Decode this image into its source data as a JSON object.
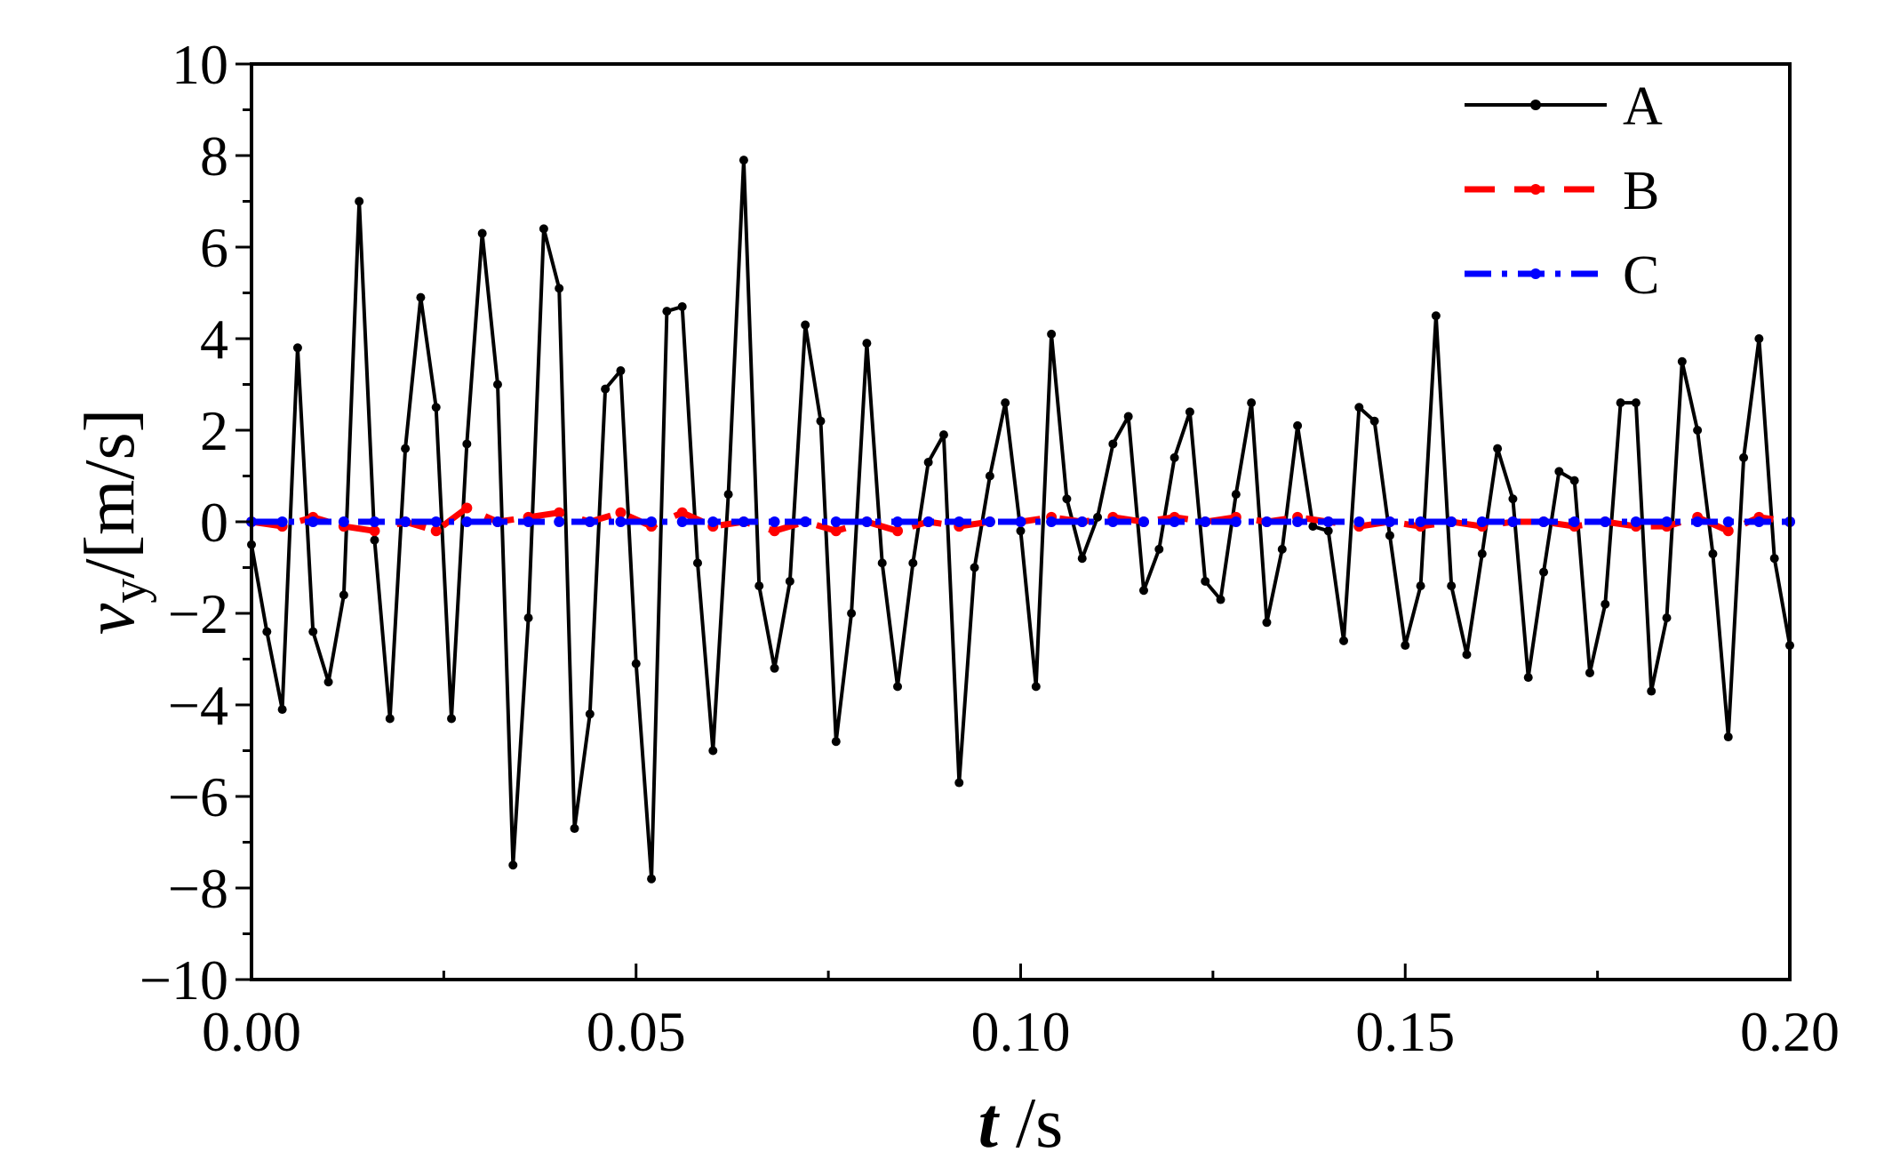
{
  "chart_data": {
    "type": "line",
    "xlabel": {
      "var": "t",
      "unit": " /s"
    },
    "ylabel": {
      "var": "v",
      "sub": "y",
      "unit": "/[m/s]"
    },
    "xlim": [
      0.0,
      0.2
    ],
    "ylim": [
      -10,
      10
    ],
    "x_ticks": [
      0.0,
      0.05,
      0.1,
      0.15,
      0.2
    ],
    "x_tick_labels": [
      "0.00",
      "0.05",
      "0.10",
      "0.15",
      "0.20"
    ],
    "y_ticks": [
      -10,
      -8,
      -6,
      -4,
      -2,
      0,
      2,
      4,
      6,
      8,
      10
    ],
    "y_tick_labels": [
      "−10",
      "−8",
      "−6",
      "−4",
      "−2",
      "0",
      "2",
      "4",
      "6",
      "8",
      "10"
    ],
    "grid": false,
    "legend_position": "top-right",
    "series": [
      {
        "name": "A",
        "color": "#000000",
        "style": "solid",
        "x": [
          0.0,
          0.002,
          0.004,
          0.006,
          0.008,
          0.01,
          0.012,
          0.014,
          0.016,
          0.018,
          0.02,
          0.022,
          0.024,
          0.026,
          0.028,
          0.03,
          0.032,
          0.034,
          0.036,
          0.038,
          0.04,
          0.042,
          0.044,
          0.046,
          0.048,
          0.05,
          0.052,
          0.054,
          0.056,
          0.058,
          0.06,
          0.062,
          0.064,
          0.066,
          0.068,
          0.07,
          0.072,
          0.074,
          0.076,
          0.078,
          0.08,
          0.082,
          0.084,
          0.086,
          0.088,
          0.09,
          0.092,
          0.094,
          0.096,
          0.098,
          0.1,
          0.102,
          0.104,
          0.106,
          0.108,
          0.11,
          0.112,
          0.114,
          0.116,
          0.118,
          0.12,
          0.122,
          0.124,
          0.126,
          0.128,
          0.13,
          0.132,
          0.134,
          0.136,
          0.138,
          0.14,
          0.142,
          0.144,
          0.146,
          0.148,
          0.15,
          0.152,
          0.154,
          0.156,
          0.158,
          0.16,
          0.162,
          0.164,
          0.166,
          0.168,
          0.17,
          0.172,
          0.174,
          0.176,
          0.178,
          0.18,
          0.182,
          0.184,
          0.186,
          0.188,
          0.19,
          0.192,
          0.194,
          0.196,
          0.198,
          0.2
        ],
        "values": [
          -0.5,
          -2.4,
          -4.1,
          3.8,
          -2.4,
          -3.5,
          -1.6,
          7.0,
          -0.4,
          -4.3,
          1.6,
          4.9,
          2.5,
          -4.3,
          1.7,
          6.3,
          3.0,
          -7.5,
          -2.1,
          6.4,
          5.1,
          -6.7,
          -4.2,
          2.9,
          3.3,
          -3.1,
          -7.8,
          4.6,
          4.7,
          -0.9,
          -5.0,
          0.6,
          7.9,
          -1.4,
          -3.2,
          -1.3,
          4.3,
          2.2,
          -4.8,
          -2.0,
          3.9,
          -0.9,
          -3.6,
          -0.9,
          1.3,
          1.9,
          -5.7,
          -1.0,
          1.0,
          2.6,
          -0.2,
          -3.6,
          4.1,
          0.5,
          -0.8,
          0.1,
          1.7,
          2.3,
          -1.5,
          -0.6,
          1.4,
          2.4,
          -1.3,
          -1.7,
          0.6,
          2.6,
          -2.2,
          -0.6,
          2.1,
          -0.1,
          -0.2,
          -2.6,
          2.5,
          2.2,
          -0.3,
          -2.7,
          -1.4,
          4.5,
          -1.4,
          -2.9,
          -0.7,
          1.6,
          0.5,
          -3.4,
          -1.1,
          1.1,
          0.9,
          -3.3,
          -1.8,
          2.6,
          2.6,
          -3.7,
          -2.1,
          3.5,
          2.0,
          -0.7,
          -4.7,
          1.4,
          4.0,
          -0.8,
          -2.7
        ]
      },
      {
        "name": "B",
        "color": "#ff0000",
        "style": "dashed",
        "x": [
          0.0,
          0.004,
          0.008,
          0.012,
          0.016,
          0.02,
          0.024,
          0.028,
          0.032,
          0.036,
          0.04,
          0.044,
          0.048,
          0.052,
          0.056,
          0.06,
          0.064,
          0.068,
          0.072,
          0.076,
          0.08,
          0.084,
          0.088,
          0.092,
          0.096,
          0.1,
          0.104,
          0.108,
          0.112,
          0.116,
          0.12,
          0.124,
          0.128,
          0.132,
          0.136,
          0.14,
          0.144,
          0.148,
          0.152,
          0.156,
          0.16,
          0.164,
          0.168,
          0.172,
          0.176,
          0.18,
          0.184,
          0.188,
          0.192,
          0.196,
          0.2
        ],
        "values": [
          0.0,
          -0.1,
          0.1,
          -0.1,
          -0.2,
          0.0,
          -0.2,
          0.3,
          0.0,
          0.1,
          0.2,
          0.0,
          0.2,
          -0.1,
          0.2,
          -0.1,
          0.0,
          -0.2,
          0.0,
          -0.2,
          0.0,
          -0.2,
          0.0,
          -0.1,
          0.0,
          0.0,
          0.1,
          0.0,
          0.1,
          0.0,
          0.1,
          0.0,
          0.1,
          0.0,
          0.1,
          0.0,
          -0.1,
          0.0,
          -0.1,
          0.0,
          -0.1,
          0.0,
          0.0,
          -0.1,
          0.0,
          -0.1,
          -0.1,
          0.1,
          -0.2,
          0.1,
          0.0
        ]
      },
      {
        "name": "C",
        "color": "#0000ff",
        "style": "dashdot",
        "x": [
          0.0,
          0.004,
          0.008,
          0.012,
          0.016,
          0.02,
          0.024,
          0.028,
          0.032,
          0.036,
          0.04,
          0.044,
          0.048,
          0.052,
          0.056,
          0.06,
          0.064,
          0.068,
          0.072,
          0.076,
          0.08,
          0.084,
          0.088,
          0.092,
          0.096,
          0.1,
          0.104,
          0.108,
          0.112,
          0.116,
          0.12,
          0.124,
          0.128,
          0.132,
          0.136,
          0.14,
          0.144,
          0.148,
          0.152,
          0.156,
          0.16,
          0.164,
          0.168,
          0.172,
          0.176,
          0.18,
          0.184,
          0.188,
          0.192,
          0.196,
          0.2
        ],
        "values": [
          0.0,
          0.0,
          0.0,
          0.0,
          0.0,
          0.0,
          0.0,
          0.0,
          0.0,
          0.0,
          0.0,
          0.0,
          0.0,
          0.0,
          0.0,
          0.0,
          0.0,
          0.0,
          0.0,
          0.0,
          0.0,
          0.0,
          0.0,
          0.0,
          0.0,
          0.0,
          0.0,
          0.0,
          0.0,
          0.0,
          0.0,
          0.0,
          0.0,
          0.0,
          0.0,
          0.0,
          0.0,
          0.0,
          0.0,
          0.0,
          0.0,
          0.0,
          0.0,
          0.0,
          0.0,
          0.0,
          0.0,
          0.0,
          0.0,
          0.0,
          0.0
        ]
      }
    ]
  }
}
